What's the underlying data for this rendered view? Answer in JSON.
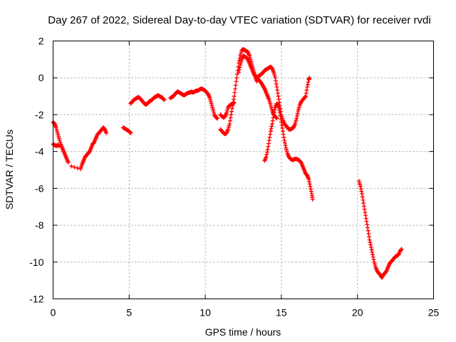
{
  "chart_data": {
    "type": "scatter",
    "title": "Day 267 of 2022, Sidereal Day-to-day VTEC variation (SDTVAR) for receiver rvdi",
    "xlabel": "GPS time / hours",
    "ylabel": "SDTVAR / TECUs",
    "xlim": [
      0,
      25
    ],
    "ylim": [
      -12,
      2
    ],
    "xticks": [
      0,
      5,
      10,
      15,
      20,
      25
    ],
    "yticks": [
      -12,
      -10,
      -8,
      -6,
      -4,
      -2,
      0,
      2
    ],
    "xtick_labels": [
      "0",
      "5",
      "10",
      "15",
      "20",
      "25"
    ],
    "ytick_labels": [
      "-12",
      "-10",
      "-8",
      "-6",
      "-4",
      "-2",
      "0",
      "2"
    ],
    "grid": true,
    "marker": "plus",
    "marker_color": "#ff0000",
    "series": [
      {
        "points": [
          [
            0.0,
            -2.4
          ],
          [
            0.1,
            -2.5
          ],
          [
            0.2,
            -2.7
          ],
          [
            0.3,
            -3.0
          ],
          [
            0.4,
            -3.3
          ],
          [
            0.5,
            -3.6
          ],
          [
            0.6,
            -3.8
          ],
          [
            0.7,
            -4.0
          ],
          [
            0.8,
            -4.2
          ],
          [
            0.9,
            -4.4
          ],
          [
            1.0,
            -4.6
          ],
          [
            1.2,
            -4.8
          ],
          [
            1.4,
            -4.85
          ],
          [
            1.6,
            -4.9
          ],
          [
            1.8,
            -4.95
          ],
          [
            1.9,
            -4.7
          ],
          [
            2.0,
            -4.5
          ],
          [
            2.1,
            -4.3
          ],
          [
            2.2,
            -4.2
          ],
          [
            2.3,
            -4.1
          ],
          [
            2.4,
            -4.0
          ],
          [
            2.5,
            -3.8
          ],
          [
            2.6,
            -3.6
          ],
          [
            2.7,
            -3.5
          ],
          [
            2.8,
            -3.3
          ],
          [
            2.9,
            -3.1
          ],
          [
            3.0,
            -3.0
          ],
          [
            3.1,
            -2.9
          ],
          [
            3.2,
            -2.8
          ],
          [
            3.3,
            -2.7
          ],
          [
            3.4,
            -2.8
          ],
          [
            3.5,
            -3.0
          ],
          [
            0.0,
            -3.6
          ],
          [
            0.1,
            -3.65
          ],
          [
            0.2,
            -3.7
          ],
          [
            0.3,
            -3.65
          ],
          [
            0.4,
            -3.7
          ]
        ]
      },
      {
        "points": [
          [
            4.6,
            -2.7
          ],
          [
            4.7,
            -2.75
          ],
          [
            4.8,
            -2.8
          ],
          [
            4.9,
            -2.85
          ],
          [
            5.0,
            -2.9
          ],
          [
            5.1,
            -3.0
          ]
        ]
      },
      {
        "points": [
          [
            5.1,
            -1.4
          ],
          [
            5.2,
            -1.3
          ],
          [
            5.3,
            -1.2
          ],
          [
            5.4,
            -1.15
          ],
          [
            5.5,
            -1.1
          ],
          [
            5.6,
            -1.05
          ],
          [
            5.7,
            -1.1
          ],
          [
            5.8,
            -1.2
          ],
          [
            5.9,
            -1.3
          ],
          [
            6.0,
            -1.4
          ],
          [
            6.1,
            -1.45
          ],
          [
            6.2,
            -1.4
          ],
          [
            6.3,
            -1.3
          ],
          [
            6.4,
            -1.25
          ],
          [
            6.5,
            -1.2
          ],
          [
            6.6,
            -1.1
          ],
          [
            6.7,
            -1.05
          ],
          [
            6.8,
            -1.0
          ],
          [
            6.9,
            -0.95
          ],
          [
            7.0,
            -1.0
          ],
          [
            7.1,
            -1.05
          ],
          [
            7.2,
            -1.1
          ],
          [
            7.3,
            -1.2
          ],
          [
            7.7,
            -1.1
          ],
          [
            7.8,
            -1.05
          ],
          [
            7.9,
            -1.0
          ],
          [
            8.0,
            -0.9
          ],
          [
            8.1,
            -0.8
          ],
          [
            8.2,
            -0.75
          ],
          [
            8.3,
            -0.8
          ],
          [
            8.4,
            -0.85
          ],
          [
            8.5,
            -0.9
          ],
          [
            8.6,
            -0.95
          ],
          [
            8.7,
            -0.9
          ],
          [
            8.8,
            -0.85
          ],
          [
            8.9,
            -0.8
          ],
          [
            9.0,
            -0.8
          ],
          [
            9.1,
            -0.75
          ],
          [
            9.2,
            -0.8
          ],
          [
            9.3,
            -0.75
          ],
          [
            9.4,
            -0.7
          ],
          [
            9.5,
            -0.7
          ],
          [
            9.6,
            -0.65
          ],
          [
            9.7,
            -0.6
          ],
          [
            9.8,
            -0.6
          ],
          [
            9.9,
            -0.65
          ],
          [
            10.0,
            -0.7
          ],
          [
            10.1,
            -0.8
          ],
          [
            10.2,
            -0.9
          ],
          [
            10.3,
            -1.1
          ],
          [
            10.4,
            -1.4
          ],
          [
            10.5,
            -1.7
          ],
          [
            10.6,
            -2.0
          ],
          [
            10.7,
            -2.15
          ],
          [
            10.8,
            -2.2
          ]
        ]
      },
      {
        "points": [
          [
            11.0,
            -2.0
          ],
          [
            11.1,
            -2.1
          ],
          [
            11.2,
            -2.15
          ],
          [
            11.3,
            -2.1
          ],
          [
            11.4,
            -1.9
          ],
          [
            11.5,
            -1.6
          ],
          [
            11.6,
            -1.5
          ],
          [
            11.7,
            -1.45
          ],
          [
            11.8,
            -1.4
          ],
          [
            11.9,
            -1.35
          ],
          [
            11.0,
            -2.8
          ],
          [
            11.1,
            -2.9
          ],
          [
            11.2,
            -3.0
          ],
          [
            11.3,
            -3.05
          ],
          [
            11.4,
            -3.0
          ],
          [
            11.5,
            -2.8
          ],
          [
            11.6,
            -2.5
          ],
          [
            11.7,
            -2.0
          ],
          [
            11.8,
            -1.5
          ],
          [
            11.9,
            -1.0
          ],
          [
            12.0,
            -0.4
          ],
          [
            12.1,
            0.2
          ],
          [
            12.2,
            0.8
          ],
          [
            12.3,
            1.2
          ],
          [
            12.4,
            1.5
          ],
          [
            12.5,
            1.55
          ],
          [
            12.6,
            1.5
          ],
          [
            12.7,
            1.45
          ],
          [
            12.8,
            1.4
          ],
          [
            12.9,
            1.2
          ],
          [
            13.0,
            0.9
          ],
          [
            13.1,
            0.6
          ],
          [
            13.2,
            0.3
          ],
          [
            13.3,
            0.0
          ],
          [
            13.4,
            -0.2
          ],
          [
            12.2,
            0.3
          ],
          [
            12.3,
            0.7
          ],
          [
            12.4,
            1.0
          ],
          [
            12.5,
            1.2
          ],
          [
            12.6,
            1.15
          ],
          [
            12.7,
            1.1
          ],
          [
            12.8,
            1.0
          ],
          [
            12.9,
            0.8
          ],
          [
            13.0,
            0.6
          ],
          [
            13.1,
            0.4
          ],
          [
            13.2,
            0.2
          ],
          [
            13.3,
            0.1
          ],
          [
            13.4,
            0.0
          ],
          [
            13.5,
            -0.1
          ],
          [
            13.6,
            -0.2
          ],
          [
            13.7,
            -0.3
          ],
          [
            13.8,
            -0.45
          ],
          [
            13.9,
            -0.6
          ],
          [
            14.0,
            -0.8
          ],
          [
            14.1,
            -1.0
          ],
          [
            14.2,
            -1.2
          ],
          [
            14.3,
            -1.5
          ],
          [
            14.4,
            -1.8
          ],
          [
            14.5,
            -2.0
          ],
          [
            14.6,
            -2.1
          ],
          [
            14.7,
            -2.2
          ],
          [
            13.5,
            0.1
          ],
          [
            13.6,
            0.15
          ],
          [
            13.7,
            0.2
          ],
          [
            13.8,
            0.3
          ],
          [
            13.9,
            0.4
          ],
          [
            14.0,
            0.45
          ],
          [
            14.1,
            0.5
          ],
          [
            14.2,
            0.55
          ],
          [
            14.3,
            0.6
          ],
          [
            14.4,
            0.5
          ],
          [
            14.5,
            0.3
          ],
          [
            14.6,
            0.0
          ],
          [
            14.7,
            -0.5
          ],
          [
            14.8,
            -1.0
          ],
          [
            14.9,
            -1.5
          ],
          [
            15.0,
            -2.0
          ],
          [
            15.1,
            -2.3
          ],
          [
            15.2,
            -2.5
          ],
          [
            15.3,
            -2.6
          ],
          [
            15.4,
            -2.7
          ],
          [
            15.5,
            -2.8
          ],
          [
            15.6,
            -2.8
          ],
          [
            15.7,
            -2.75
          ],
          [
            15.8,
            -2.7
          ],
          [
            15.9,
            -2.5
          ],
          [
            16.0,
            -2.2
          ],
          [
            16.1,
            -1.8
          ],
          [
            16.2,
            -1.5
          ],
          [
            16.3,
            -1.3
          ],
          [
            16.4,
            -1.2
          ],
          [
            16.5,
            -1.1
          ],
          [
            16.6,
            -1.0
          ],
          [
            16.7,
            -0.5
          ],
          [
            16.8,
            -0.1
          ],
          [
            16.85,
            0.0
          ]
        ]
      },
      {
        "points": [
          [
            13.9,
            -4.5
          ],
          [
            14.0,
            -4.3
          ],
          [
            14.1,
            -3.9
          ],
          [
            14.2,
            -3.4
          ],
          [
            14.3,
            -2.9
          ],
          [
            14.4,
            -2.5
          ],
          [
            14.5,
            -2.0
          ],
          [
            14.6,
            -1.6
          ],
          [
            14.7,
            -1.4
          ],
          [
            14.8,
            -1.5
          ],
          [
            14.9,
            -1.9
          ],
          [
            15.0,
            -2.4
          ],
          [
            15.1,
            -2.9
          ],
          [
            15.2,
            -3.4
          ],
          [
            15.3,
            -3.8
          ],
          [
            15.4,
            -4.1
          ],
          [
            15.5,
            -4.3
          ],
          [
            15.6,
            -4.4
          ],
          [
            15.7,
            -4.45
          ],
          [
            15.8,
            -4.45
          ],
          [
            15.9,
            -4.4
          ],
          [
            16.0,
            -4.4
          ],
          [
            16.1,
            -4.45
          ],
          [
            16.2,
            -4.5
          ],
          [
            16.3,
            -4.6
          ],
          [
            16.4,
            -4.8
          ],
          [
            16.5,
            -5.0
          ],
          [
            16.6,
            -5.2
          ],
          [
            16.7,
            -5.3
          ],
          [
            16.8,
            -5.5
          ],
          [
            16.9,
            -5.9
          ],
          [
            17.0,
            -6.3
          ],
          [
            17.05,
            -6.6
          ]
        ]
      },
      {
        "points": [
          [
            20.1,
            -5.6
          ],
          [
            20.2,
            -5.9
          ],
          [
            20.3,
            -6.3
          ],
          [
            20.4,
            -6.8
          ],
          [
            20.5,
            -7.3
          ],
          [
            20.6,
            -7.8
          ],
          [
            20.7,
            -8.3
          ],
          [
            20.8,
            -8.8
          ],
          [
            20.9,
            -9.2
          ],
          [
            21.0,
            -9.6
          ],
          [
            21.1,
            -10.0
          ],
          [
            21.2,
            -10.3
          ],
          [
            21.3,
            -10.5
          ],
          [
            21.4,
            -10.6
          ],
          [
            21.5,
            -10.7
          ],
          [
            21.6,
            -10.85
          ],
          [
            21.7,
            -10.7
          ],
          [
            21.8,
            -10.6
          ],
          [
            21.9,
            -10.5
          ],
          [
            22.0,
            -10.3
          ],
          [
            22.1,
            -10.1
          ],
          [
            22.2,
            -10.0
          ],
          [
            22.3,
            -9.9
          ],
          [
            22.4,
            -9.8
          ],
          [
            22.5,
            -9.7
          ],
          [
            22.6,
            -9.65
          ],
          [
            22.7,
            -9.6
          ],
          [
            22.8,
            -9.4
          ],
          [
            22.9,
            -9.3
          ]
        ]
      }
    ]
  }
}
